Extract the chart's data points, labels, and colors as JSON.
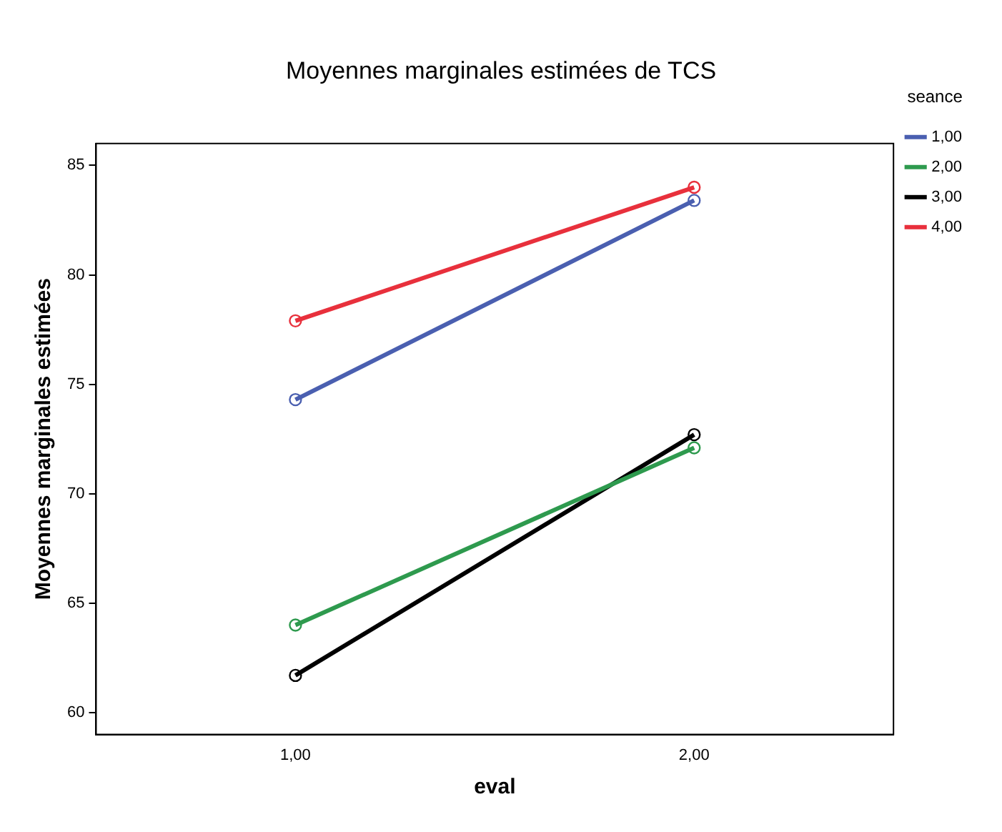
{
  "chart_data": {
    "type": "line",
    "title": "Moyennes marginales estimées de TCS",
    "xlabel": "eval",
    "ylabel": "Moyennes marginales estimées",
    "legend_title": "seance",
    "categories": [
      "1,00",
      "2,00"
    ],
    "series": [
      {
        "name": "1,00",
        "color": "#4a5fb0",
        "values": [
          74.3,
          83.4
        ]
      },
      {
        "name": "2,00",
        "color": "#2e9a4e",
        "values": [
          64.0,
          72.1
        ]
      },
      {
        "name": "3,00",
        "color": "#000000",
        "values": [
          61.7,
          72.7
        ]
      },
      {
        "name": "4,00",
        "color": "#e8303c",
        "values": [
          77.9,
          84.0
        ]
      }
    ],
    "ylim": [
      59,
      86
    ],
    "yticks": [
      60,
      65,
      70,
      75,
      80,
      85
    ],
    "grid": false,
    "legend": "top right",
    "marker": "circle",
    "line_style": "solid"
  }
}
